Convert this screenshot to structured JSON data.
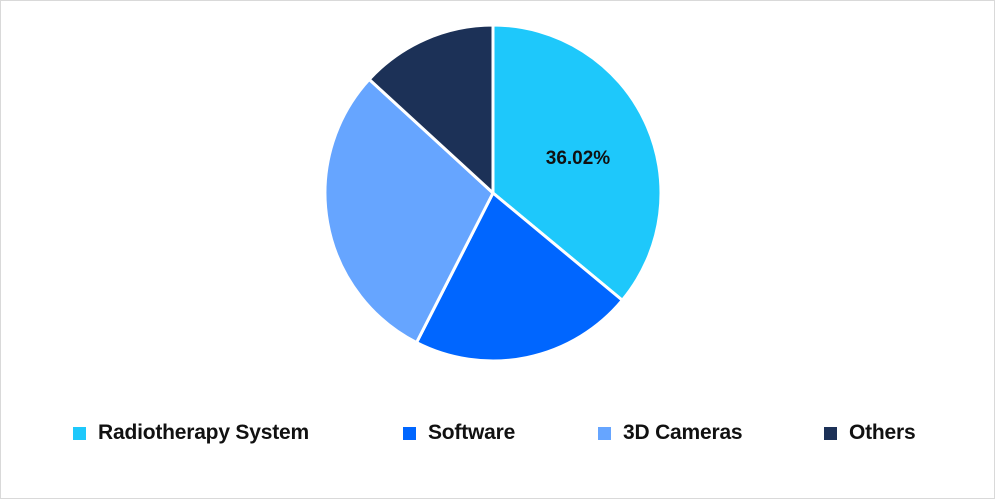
{
  "chart_data": {
    "type": "pie",
    "title": "",
    "categories": [
      "Radiotherapy System",
      "Software",
      "3D Cameras",
      "Others"
    ],
    "values": [
      36.02,
      21.5,
      29.3,
      13.18
    ],
    "unit": "%",
    "colors": [
      "#1ec8fb",
      "#0066ff",
      "#66a5ff",
      "#1c3157"
    ],
    "data_labels": [
      {
        "category": "Radiotherapy System",
        "text": "36.02%"
      }
    ],
    "start_angle_deg": 0,
    "direction": "clockwise",
    "legend_position": "bottom"
  },
  "legend": {
    "items": [
      {
        "label": "Radiotherapy System",
        "color": "#1ec8fb"
      },
      {
        "label": "Software",
        "color": "#0066ff"
      },
      {
        "label": "3D Cameras",
        "color": "#66a5ff"
      },
      {
        "label": "Others",
        "color": "#1c3157"
      }
    ]
  },
  "labels": {
    "radiotherapy": "36.02%"
  }
}
